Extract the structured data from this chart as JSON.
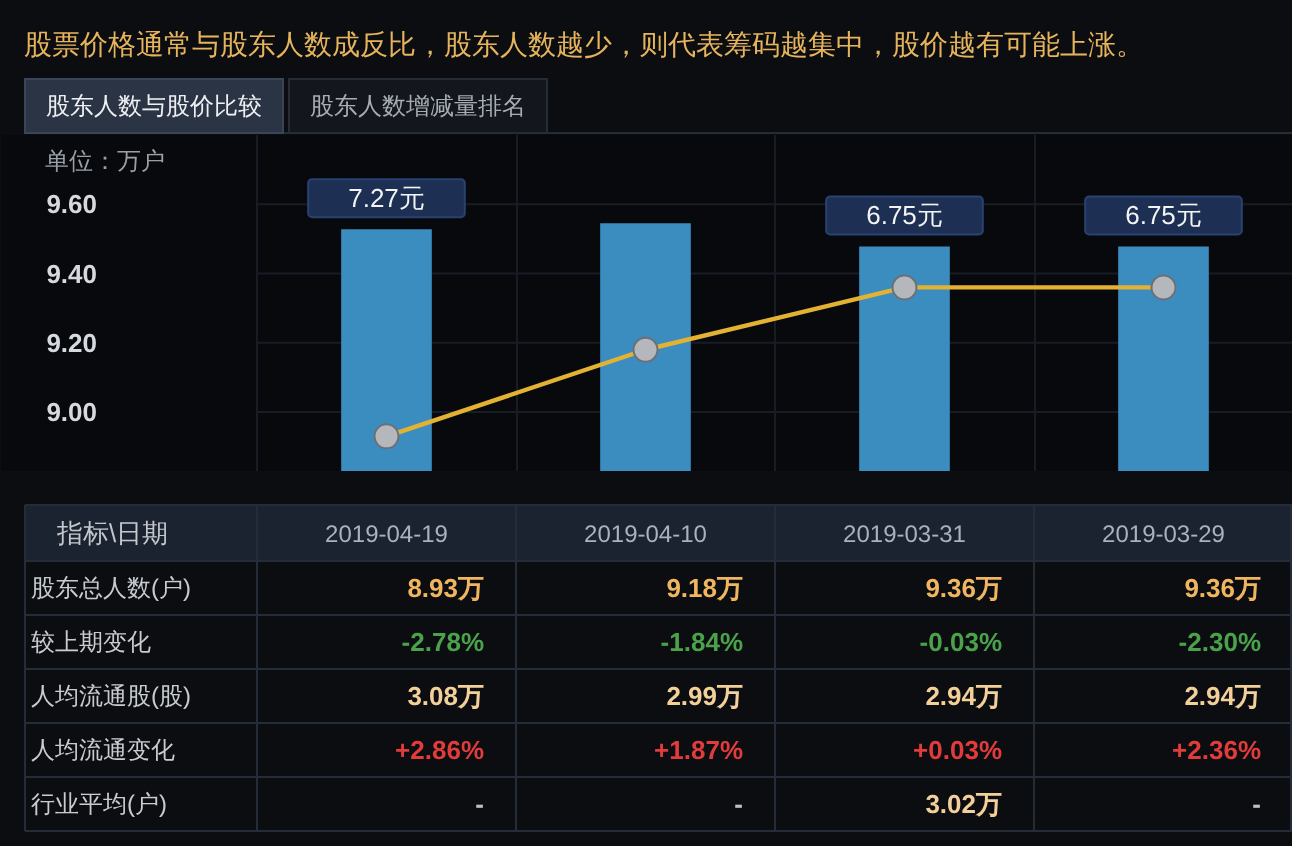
{
  "chart_data": [
    {
      "type": "bar",
      "title": "股票价格通常与股东人数成反比，股东人数越少，则代表筹码越集中，股价越有可能上涨。",
      "subtitle": "股东人数与股价比较",
      "annotations": [
        "股东人数增减量排名"
      ],
      "ylabel": "单位：万户",
      "categories": [
        null,
        null,
        null,
        null
      ],
      "series": [
        {
          "type": "bar",
          "axis": "y2",
          "color": "#3b8dbf",
          "values": [
            7.27,
            7.45,
            6.75,
            6.75
          ],
          "value_labels": [
            "7.27元",
            null,
            "6.75元",
            "6.75元"
          ]
        },
        {
          "type": "line",
          "color": "#e3b232",
          "values": [
            8.93,
            9.18,
            9.36,
            9.36
          ]
        }
      ],
      "ylim": [
        8.83,
        9.8
      ],
      "yticks": [
        {
          "value": 9,
          "label": "9.00"
        },
        {
          "value": 9.2,
          "label": "9.20"
        },
        {
          "value": 9.4,
          "label": "9.40"
        },
        {
          "value": 9.6,
          "label": "9.60"
        }
      ],
      "y2lim": [
        0,
        10.1
      ],
      "grid": true,
      "tick_labels": "y",
      "marker": "circle"
    },
    {
      "type": "other",
      "annotations": [
        "指标\\日期"
      ],
      "categories": [
        "2019-04-19",
        "2019-04-10",
        "2019-03-31",
        "2019-03-29"
      ],
      "series": [
        {
          "name": "股东总人数(户)",
          "colors": [
            "#f0b55f",
            "#f0b55f",
            "#f0b55f",
            "#f0b55f"
          ],
          "values": [
            8.93,
            9.18,
            9.36,
            9.36
          ],
          "value_labels": [
            "8.93万",
            "9.18万",
            "9.36万",
            "9.36万"
          ]
        },
        {
          "name": "较上期变化",
          "colors": [
            "#4aa34a",
            "#4aa34a",
            "#4aa34a",
            "#4aa34a"
          ],
          "values": [
            -2.78,
            -1.84,
            -0.03,
            -2.3
          ],
          "value_labels": [
            "-2.78%",
            "-1.84%",
            "-0.03%",
            "-2.30%"
          ]
        },
        {
          "name": "人均流通股(股)",
          "colors": [
            "#f3cf9a",
            "#f3cf9a",
            "#f3cf9a",
            "#f3cf9a"
          ],
          "values": [
            3.08,
            2.99,
            2.94,
            2.94
          ],
          "value_labels": [
            "3.08万",
            "2.99万",
            "2.94万",
            "2.94万"
          ]
        },
        {
          "name": "人均流通变化",
          "colors": [
            "#e23b3b",
            "#e23b3b",
            "#e23b3b",
            "#e23b3b"
          ],
          "values": [
            2.86,
            1.87,
            0.03,
            2.36
          ],
          "value_labels": [
            "+2.86%",
            "+1.87%",
            "+0.03%",
            "+2.36%"
          ]
        },
        {
          "name": "行业平均(户)",
          "colors": [
            "#c0c0c0",
            "#c0c0c0",
            "#f3cf9a",
            "#c0c0c0"
          ],
          "values": [
            null,
            null,
            3.02,
            null
          ],
          "value_labels": [
            "-",
            "-",
            "3.02万",
            "-"
          ]
        }
      ]
    }
  ]
}
